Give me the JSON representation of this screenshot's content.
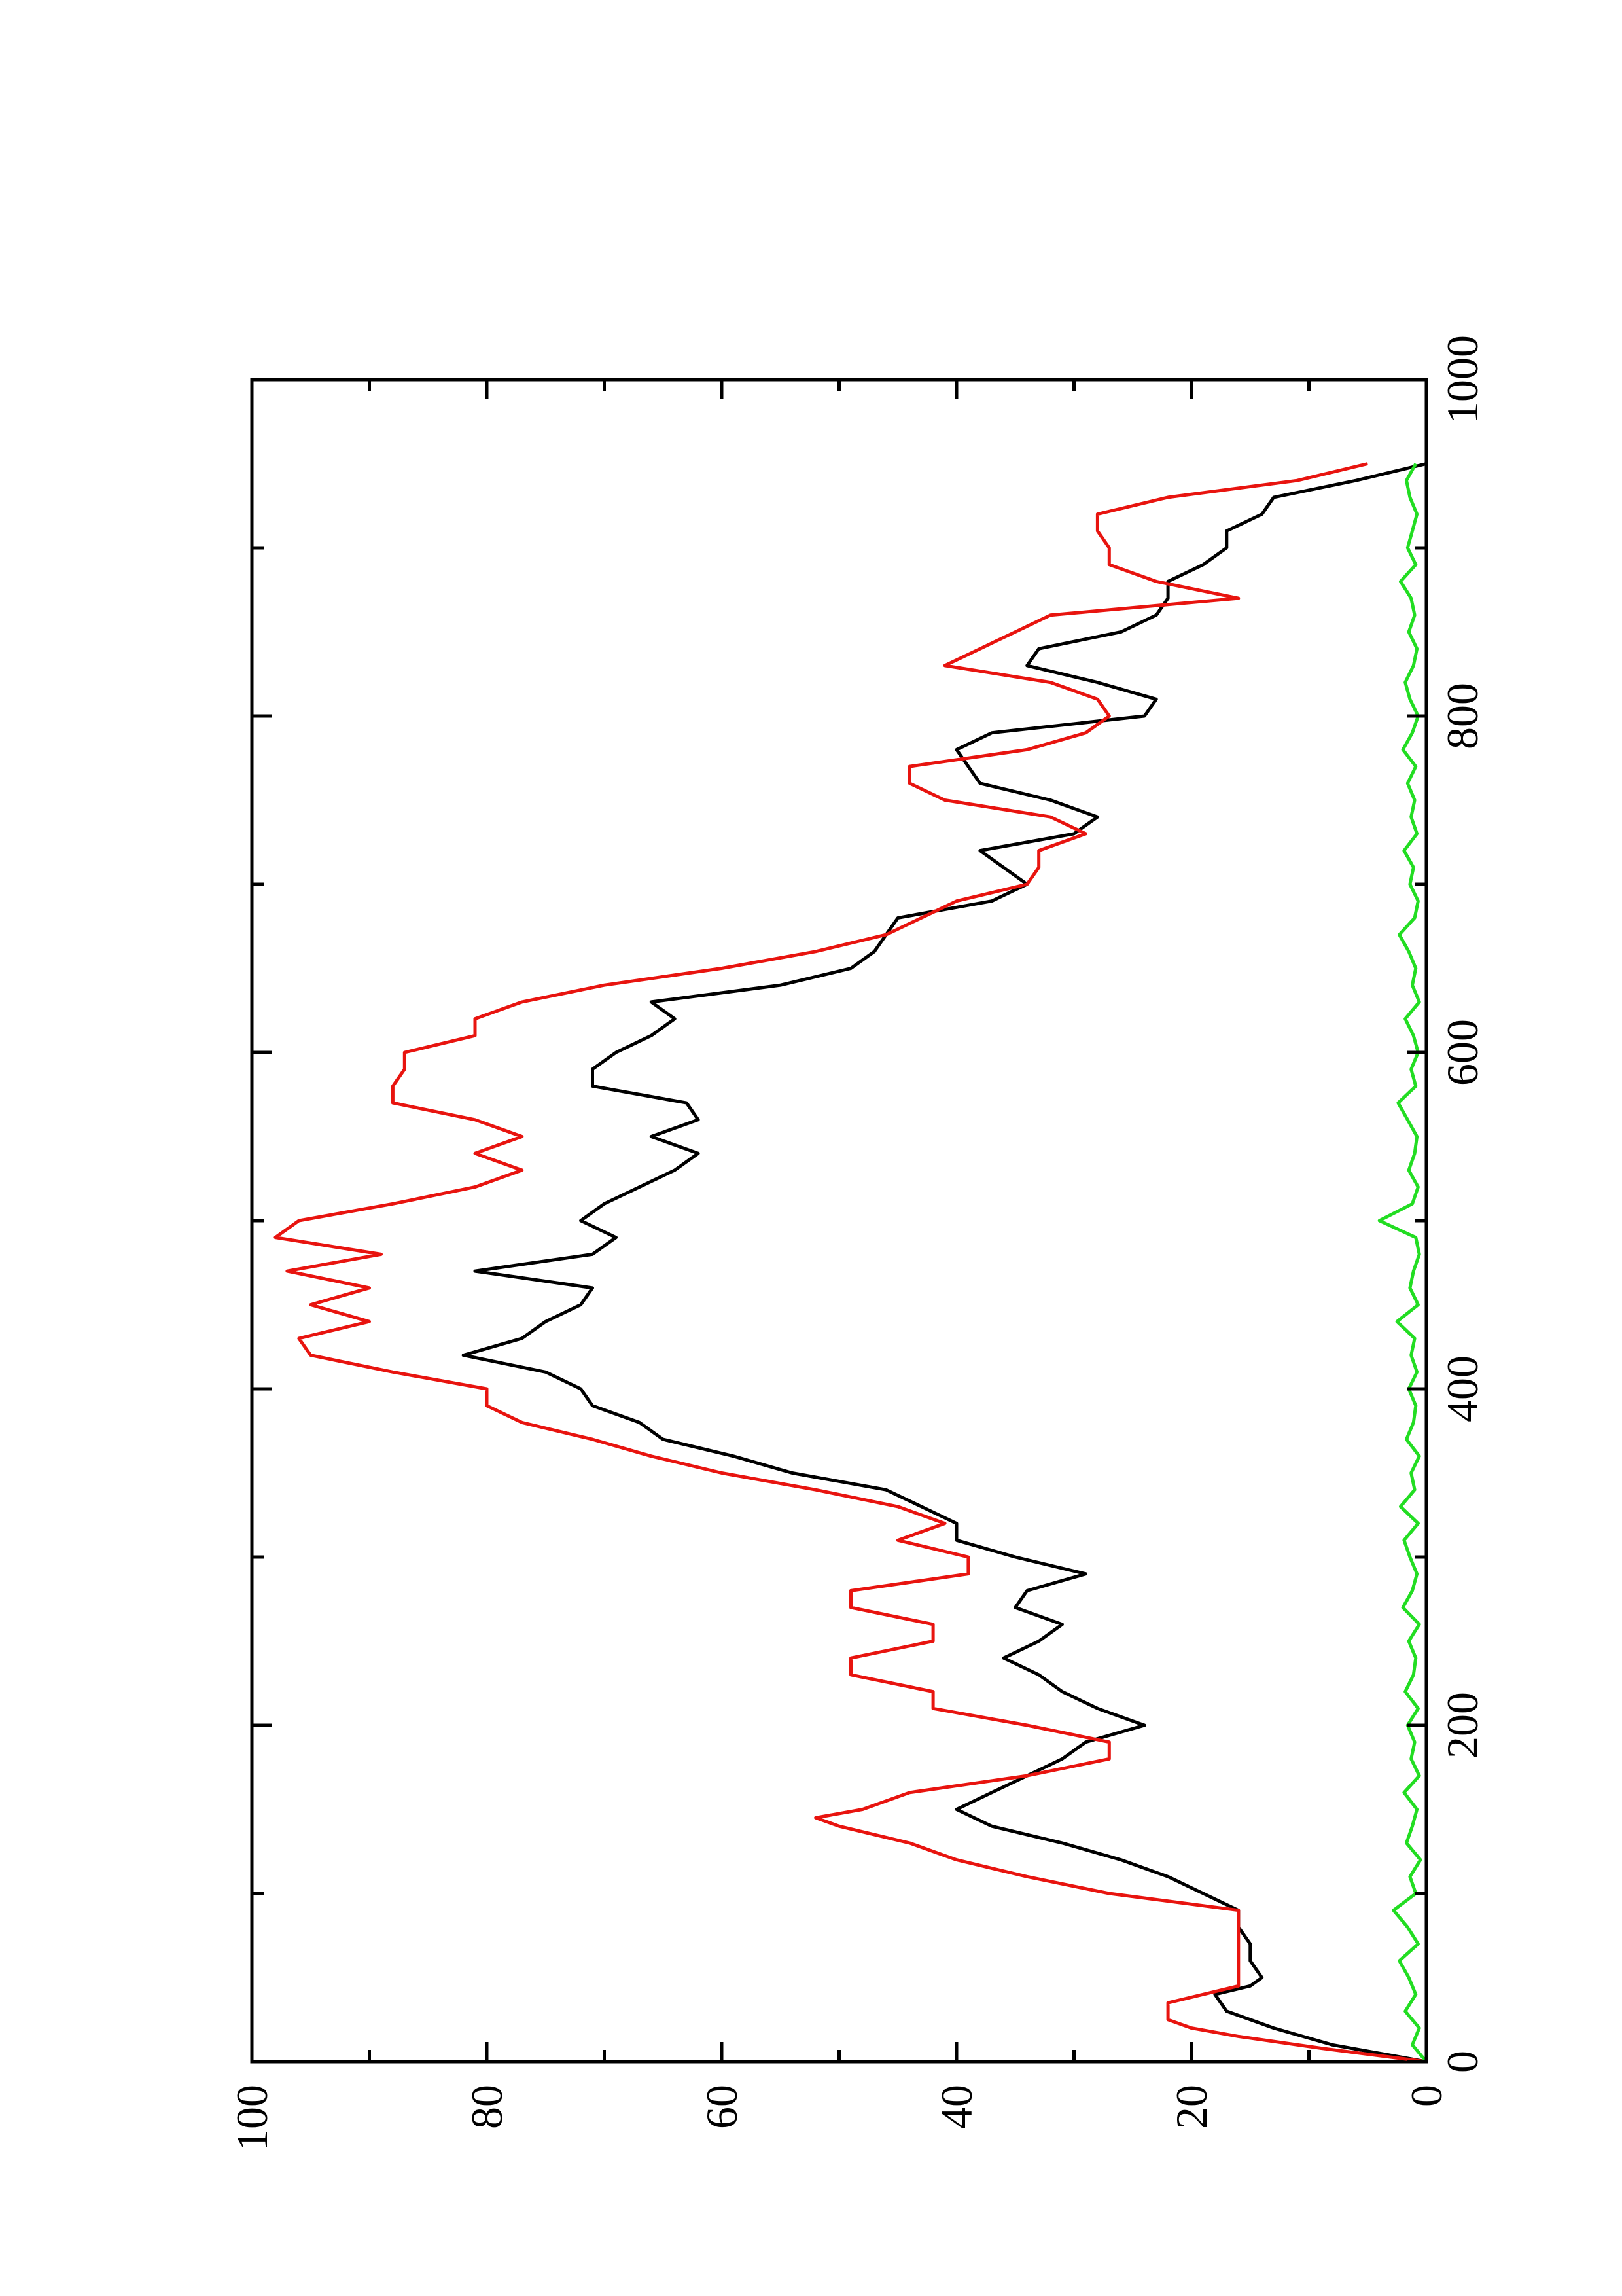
{
  "chart_data": {
    "type": "line",
    "orientation": "rotated-90-ccw",
    "title": "",
    "xlabel": "",
    "ylabel": "",
    "xlim": [
      0,
      1000
    ],
    "ylim": [
      0,
      100
    ],
    "x_ticks": [
      0,
      200,
      400,
      600,
      800,
      1000
    ],
    "x_tick_labels": [
      "0",
      "200",
      "400",
      "600",
      "800",
      "1000"
    ],
    "y_ticks": [
      0,
      20,
      40,
      60,
      80,
      100
    ],
    "y_tick_labels": [
      "0",
      "20",
      "40",
      "60",
      "80",
      "100"
    ],
    "grid": false,
    "legend": "none",
    "series": [
      {
        "color": "#000000",
        "x": [
          0,
          10,
          20,
          30,
          40,
          45,
          50,
          60,
          70,
          80,
          90,
          100,
          110,
          120,
          130,
          140,
          150,
          160,
          170,
          180,
          190,
          200,
          210,
          220,
          230,
          240,
          250,
          260,
          270,
          280,
          290,
          300,
          310,
          320,
          330,
          340,
          350,
          360,
          370,
          380,
          390,
          400,
          410,
          420,
          430,
          440,
          450,
          460,
          470,
          480,
          490,
          500,
          510,
          520,
          530,
          540,
          550,
          560,
          570,
          580,
          590,
          600,
          610,
          620,
          630,
          640,
          650,
          660,
          670,
          680,
          690,
          700,
          710,
          720,
          730,
          740,
          750,
          760,
          770,
          780,
          790,
          800,
          810,
          820,
          830,
          840,
          850,
          860,
          870,
          880,
          890,
          900,
          910,
          920,
          930,
          940,
          950
        ],
        "y": [
          0,
          8,
          13,
          17,
          18,
          15,
          14,
          15,
          15,
          16,
          16,
          19,
          22,
          26,
          31,
          37,
          40,
          37,
          34,
          31,
          29,
          24,
          28,
          31,
          33,
          36,
          33,
          31,
          35,
          34,
          29,
          35,
          40,
          40,
          43,
          46,
          54,
          59,
          65,
          67,
          71,
          72,
          75,
          82,
          77,
          75,
          72,
          71,
          81,
          71,
          69,
          72,
          70,
          67,
          64,
          62,
          66,
          62,
          63,
          71,
          71,
          69,
          66,
          64,
          66,
          55,
          49,
          47,
          46,
          45,
          37,
          34,
          36,
          38,
          30,
          28,
          32,
          38,
          39,
          40,
          37,
          24,
          23,
          28,
          34,
          33,
          26,
          23,
          22,
          22,
          19,
          17,
          17,
          14,
          13,
          6,
          0
        ]
      },
      {
        "color": "#e8140f",
        "x": [
          0,
          8,
          15,
          20,
          25,
          35,
          45,
          55,
          65,
          75,
          85,
          90,
          100,
          110,
          120,
          130,
          140,
          145,
          150,
          160,
          170,
          180,
          190,
          200,
          210,
          220,
          230,
          240,
          250,
          260,
          270,
          280,
          290,
          300,
          310,
          320,
          330,
          340,
          350,
          360,
          370,
          380,
          390,
          400,
          410,
          420,
          430,
          440,
          450,
          460,
          470,
          480,
          490,
          500,
          510,
          520,
          530,
          540,
          550,
          560,
          570,
          580,
          590,
          600,
          610,
          620,
          630,
          640,
          650,
          660,
          670,
          680,
          690,
          700,
          710,
          720,
          730,
          740,
          750,
          760,
          770,
          780,
          790,
          800,
          810,
          820,
          830,
          840,
          850,
          860,
          870,
          880,
          890,
          900,
          910,
          920,
          930,
          940,
          950
        ],
        "y": [
          0,
          9,
          16,
          20,
          22,
          22,
          16,
          16,
          16,
          16,
          16,
          16,
          27,
          34,
          40,
          44,
          50,
          52,
          48,
          44,
          34,
          27,
          27,
          34,
          42,
          42,
          49,
          49,
          42,
          42,
          49,
          49,
          39,
          39,
          45,
          41,
          45,
          52,
          60,
          66,
          71,
          77,
          80,
          80,
          88,
          95,
          96,
          90,
          95,
          90,
          97,
          89,
          98,
          96,
          88,
          81,
          77,
          81,
          77,
          81,
          88,
          88,
          87,
          87,
          81,
          81,
          77,
          70,
          60,
          52,
          46,
          43,
          40,
          34,
          33,
          33,
          29,
          32,
          41,
          44,
          44,
          34,
          29,
          27,
          28,
          32,
          41,
          38,
          35,
          32,
          16,
          23,
          27,
          27,
          28,
          28,
          22,
          11,
          5
        ]
      },
      {
        "color": "#22dd22",
        "x": [
          0,
          10,
          20,
          30,
          40,
          50,
          60,
          70,
          80,
          90,
          100,
          110,
          120,
          130,
          140,
          150,
          160,
          170,
          180,
          190,
          200,
          210,
          220,
          230,
          240,
          250,
          260,
          270,
          280,
          290,
          300,
          310,
          320,
          330,
          340,
          350,
          360,
          370,
          380,
          390,
          400,
          410,
          420,
          430,
          440,
          450,
          460,
          470,
          480,
          490,
          500,
          510,
          520,
          530,
          540,
          550,
          560,
          570,
          580,
          590,
          600,
          610,
          620,
          630,
          640,
          650,
          660,
          670,
          680,
          690,
          700,
          710,
          720,
          730,
          740,
          750,
          760,
          770,
          780,
          790,
          800,
          810,
          820,
          830,
          840,
          850,
          860,
          870,
          880,
          890,
          900,
          910,
          920,
          930,
          940,
          950
        ],
        "y": [
          0,
          1.2,
          0.6,
          1.8,
          0.9,
          1.5,
          2.3,
          0.7,
          1.6,
          2.8,
          0.9,
          1.4,
          0.5,
          1.7,
          1.2,
          0.8,
          1.9,
          0.6,
          1.3,
          1.0,
          1.6,
          0.7,
          1.8,
          1.1,
          0.9,
          1.5,
          0.6,
          2.0,
          1.2,
          0.8,
          1.4,
          1.9,
          0.7,
          2.2,
          1.0,
          1.3,
          0.6,
          1.7,
          1.1,
          0.9,
          1.5,
          0.8,
          1.3,
          1.0,
          2.5,
          0.7,
          1.4,
          1.1,
          0.6,
          0.9,
          4.0,
          1.2,
          0.7,
          1.5,
          1.0,
          0.8,
          1.6,
          2.4,
          0.9,
          1.3,
          0.7,
          1.1,
          1.8,
          0.6,
          1.2,
          0.9,
          1.5,
          2.3,
          1.0,
          0.7,
          1.4,
          1.1,
          1.9,
          0.8,
          1.3,
          1.0,
          1.6,
          0.9,
          2.0,
          1.2,
          0.7,
          1.4,
          1.8,
          1.1,
          0.8,
          1.5,
          1.0,
          1.3,
          2.2,
          0.9,
          1.6,
          1.2,
          0.8,
          1.4,
          1.7,
          0.9
        ]
      }
    ]
  }
}
